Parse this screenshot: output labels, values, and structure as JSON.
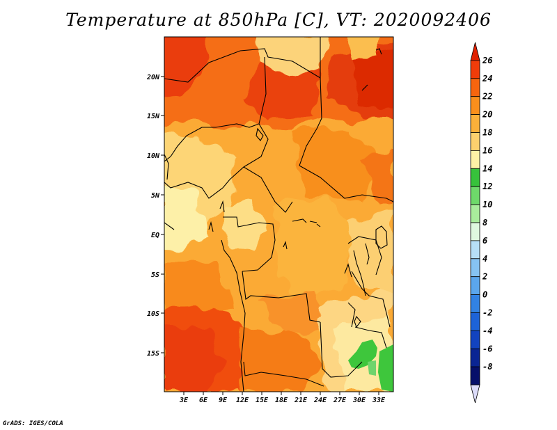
{
  "title": "Temperature at 850hPa [C], VT: 2020092406",
  "credit": "GrADS: IGES/COLA",
  "map": {
    "variable": "Temperature at 850hPa",
    "units": "C",
    "valid_time": "2020092406",
    "lat_labels": [
      "20N",
      "15N",
      "10N",
      "5N",
      "EQ",
      "5S",
      "10S",
      "15S"
    ],
    "lon_labels": [
      "3E",
      "6E",
      "9E",
      "12E",
      "15E",
      "18E",
      "21E",
      "24E",
      "27E",
      "30E",
      "33E"
    ]
  },
  "colorbar": {
    "labels": [
      "26",
      "24",
      "22",
      "20",
      "18",
      "16",
      "14",
      "12",
      "10",
      "8",
      "6",
      "4",
      "2",
      "0",
      "-2",
      "-4",
      "-6",
      "-8"
    ],
    "colors": [
      "#e02000",
      "#f03c0a",
      "#f7650e",
      "#fa8f1c",
      "#fbb03a",
      "#fdd06e",
      "#fef2a6",
      "#37c23b",
      "#6ed96a",
      "#a9ec9c",
      "#dff8df",
      "#b7dff7",
      "#86c3f2",
      "#5ba6ec",
      "#3282e3",
      "#1d63d8",
      "#1243bf",
      "#0a2593",
      "#06106a",
      "#dcdcfa"
    ]
  }
}
